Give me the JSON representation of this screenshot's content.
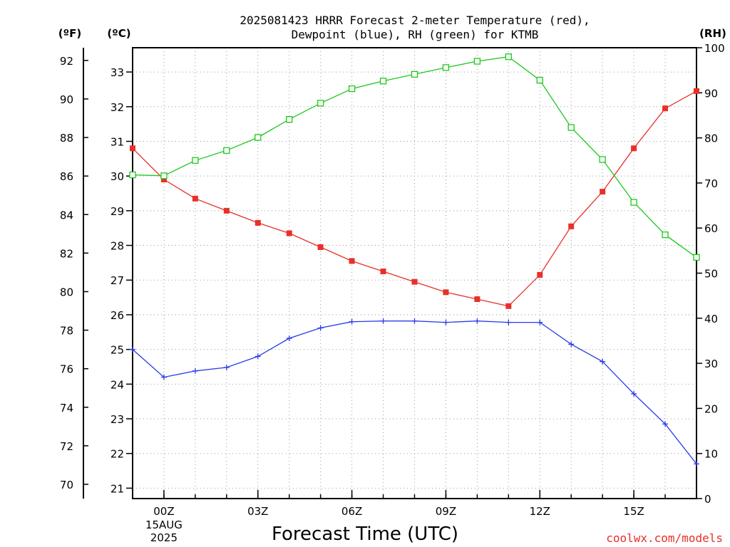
{
  "chart_data": {
    "type": "line",
    "title_line1": "2025081423 HRRR Forecast 2-meter Temperature (red),",
    "title_line2": "Dewpoint (blue), RH (green) for KTMB",
    "xlabel": "Forecast Time (UTC)",
    "credit": "coolwx.com/models",
    "unit_f": "(ºF)",
    "unit_c": "(ºC)",
    "unit_rh": "(RH)",
    "x_hours": [
      23,
      0,
      1,
      2,
      3,
      4,
      5,
      6,
      7,
      8,
      9,
      10,
      11,
      12,
      13,
      14,
      15,
      16,
      17
    ],
    "x_ticks": [
      {
        "hour": 0,
        "label": "00Z",
        "date_line1": "15AUG",
        "date_line2": "2025"
      },
      {
        "hour": 3,
        "label": "03Z"
      },
      {
        "hour": 6,
        "label": "06Z"
      },
      {
        "hour": 9,
        "label": "09Z"
      },
      {
        "hour": 12,
        "label": "12Z"
      },
      {
        "hour": 15,
        "label": "15Z"
      }
    ],
    "ylim_c": [
      20.7,
      33.7
    ],
    "ylim_rh": [
      0,
      100
    ],
    "y_ticks_c": [
      21,
      22,
      23,
      24,
      25,
      26,
      27,
      28,
      29,
      30,
      31,
      32,
      33
    ],
    "y_ticks_f": [
      70,
      72,
      74,
      76,
      78,
      80,
      82,
      84,
      86,
      88,
      90,
      92
    ],
    "y_ticks_rh": [
      0,
      10,
      20,
      30,
      40,
      50,
      60,
      70,
      80,
      90,
      100
    ],
    "grid": true,
    "series": [
      {
        "name": "Temperature",
        "axis": "c",
        "color": "#e8302a",
        "marker": "filled-square",
        "values": [
          30.8,
          29.9,
          29.35,
          29.0,
          28.65,
          28.35,
          27.95,
          27.55,
          27.25,
          26.95,
          26.65,
          26.45,
          26.25,
          27.15,
          28.55,
          29.55,
          30.8,
          31.95,
          32.45
        ]
      },
      {
        "name": "Dewpoint",
        "axis": "c",
        "color": "#2a3be8",
        "marker": "plus",
        "values": [
          25.0,
          24.2,
          24.38,
          24.48,
          24.8,
          25.32,
          25.62,
          25.8,
          25.82,
          25.82,
          25.78,
          25.82,
          25.78,
          25.78,
          25.15,
          24.65,
          23.72,
          22.85,
          21.7
        ]
      },
      {
        "name": "RH",
        "axis": "rh",
        "color": "#1ec81e",
        "marker": "open-square",
        "values": [
          71.8,
          71.6,
          75.0,
          77.2,
          80.1,
          84.1,
          87.7,
          90.9,
          92.6,
          94.1,
          95.6,
          97.0,
          98.0,
          92.8,
          82.3,
          75.2,
          65.7,
          58.5,
          53.5
        ]
      }
    ]
  }
}
